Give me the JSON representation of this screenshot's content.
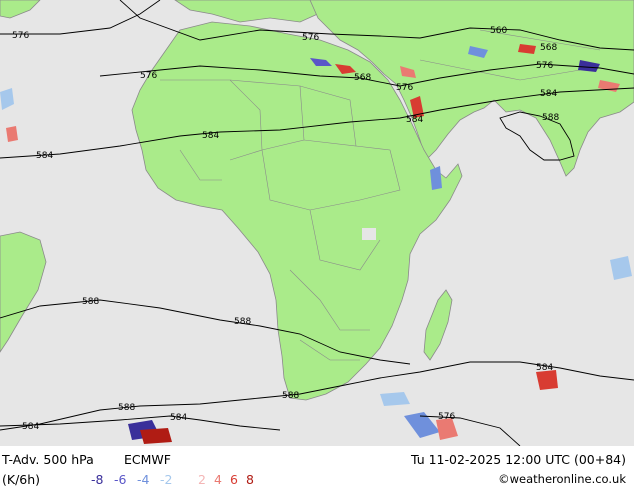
{
  "title_left": "T-Adv. 500 hPa",
  "model": "ECMWF",
  "unit": "(K/6h)",
  "valid_time": "Tu 11-02-2025 12:00 UTC (00+84)",
  "credit": "©weatheronline.co.uk",
  "legend": [
    {
      "label": "-8",
      "color": "#3a2f9a"
    },
    {
      "label": "-6",
      "color": "#5a56c8"
    },
    {
      "label": "-4",
      "color": "#6f90dc"
    },
    {
      "label": "-2",
      "color": "#a6c8ec"
    },
    {
      "label": "2",
      "color": "#f4b6b6"
    },
    {
      "label": "4",
      "color": "#ea7a72"
    },
    {
      "label": "6",
      "color": "#d83c32"
    },
    {
      "label": "8",
      "color": "#b01c14"
    }
  ],
  "colors": {
    "ocean": "#e6e6e6",
    "land": "#aaeb8a",
    "border": "#8a8a8a",
    "contour": "#000000"
  },
  "contour_labels": [
    "576",
    "576",
    "576",
    "560",
    "568",
    "568",
    "576",
    "576",
    "584",
    "584",
    "584",
    "584",
    "588",
    "588",
    "588",
    "588",
    "588",
    "584",
    "584",
    "584",
    "576"
  ]
}
